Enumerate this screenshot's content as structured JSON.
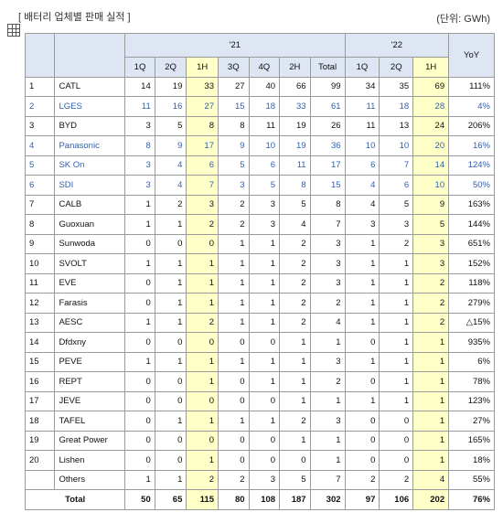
{
  "header": {
    "title": "[ 배터리 업체별 판매 실적 ]",
    "unit": "(단위: GWh)"
  },
  "table": {
    "groups": [
      "'21",
      "'22",
      "YoY"
    ],
    "columns_21": [
      "1Q",
      "2Q",
      "1H",
      "3Q",
      "4Q",
      "2H",
      "Total"
    ],
    "columns_22": [
      "1Q",
      "2Q",
      "1H"
    ],
    "highlight_color": "#ffffc8",
    "rows": [
      {
        "rank": "1",
        "company": "CATL",
        "values": [
          14,
          19,
          33,
          27,
          40,
          66,
          99,
          34,
          35,
          69
        ],
        "yoy": "111%"
      },
      {
        "rank": "2",
        "company": "LGES",
        "values": [
          11,
          16,
          27,
          15,
          18,
          33,
          61,
          11,
          18,
          28
        ],
        "yoy": "4%",
        "color": "#3060b0"
      },
      {
        "rank": "3",
        "company": "BYD",
        "values": [
          3,
          5,
          8,
          8,
          11,
          19,
          26,
          11,
          13,
          24
        ],
        "yoy": "206%"
      },
      {
        "rank": "4",
        "company": "Panasonic",
        "values": [
          8,
          9,
          17,
          9,
          10,
          19,
          36,
          10,
          10,
          20
        ],
        "yoy": "16%",
        "color": "#3060b0"
      },
      {
        "rank": "5",
        "company": "SK On",
        "values": [
          3,
          4,
          6,
          5,
          6,
          11,
          17,
          6,
          7,
          14
        ],
        "yoy": "124%",
        "color": "#3060b0"
      },
      {
        "rank": "6",
        "company": "SDI",
        "values": [
          3,
          4,
          7,
          3,
          5,
          8,
          15,
          4,
          6,
          10
        ],
        "yoy": "50%",
        "color": "#3060b0"
      },
      {
        "rank": "7",
        "company": "CALB",
        "values": [
          1,
          2,
          3,
          2,
          3,
          5,
          8,
          4,
          5,
          9
        ],
        "yoy": "163%"
      },
      {
        "rank": "8",
        "company": "Guoxuan",
        "values": [
          1,
          1,
          2,
          2,
          3,
          4,
          7,
          3,
          3,
          5
        ],
        "yoy": "144%"
      },
      {
        "rank": "9",
        "company": "Sunwoda",
        "values": [
          0,
          0,
          0,
          1,
          1,
          2,
          3,
          1,
          2,
          3
        ],
        "yoy": "651%"
      },
      {
        "rank": "10",
        "company": "SVOLT",
        "values": [
          1,
          1,
          1,
          1,
          1,
          2,
          3,
          1,
          1,
          3
        ],
        "yoy": "152%"
      },
      {
        "rank": "11",
        "company": "EVE",
        "values": [
          0,
          1,
          1,
          1,
          1,
          2,
          3,
          1,
          1,
          2
        ],
        "yoy": "118%"
      },
      {
        "rank": "12",
        "company": "Farasis",
        "values": [
          0,
          1,
          1,
          1,
          1,
          2,
          2,
          1,
          1,
          2
        ],
        "yoy": "279%"
      },
      {
        "rank": "13",
        "company": "AESC",
        "values": [
          1,
          1,
          2,
          1,
          1,
          2,
          4,
          1,
          1,
          2
        ],
        "yoy": "△15%"
      },
      {
        "rank": "14",
        "company": "Dfdxny",
        "values": [
          0,
          0,
          0,
          0,
          0,
          1,
          1,
          0,
          1,
          1
        ],
        "yoy": "935%"
      },
      {
        "rank": "15",
        "company": "PEVE",
        "values": [
          1,
          1,
          1,
          1,
          1,
          1,
          3,
          1,
          1,
          1
        ],
        "yoy": "6%"
      },
      {
        "rank": "16",
        "company": "REPT",
        "values": [
          0,
          0,
          1,
          0,
          1,
          1,
          2,
          0,
          1,
          1
        ],
        "yoy": "78%"
      },
      {
        "rank": "17",
        "company": "JEVE",
        "values": [
          0,
          0,
          0,
          0,
          0,
          1,
          1,
          1,
          1,
          1
        ],
        "yoy": "123%"
      },
      {
        "rank": "18",
        "company": "TAFEL",
        "values": [
          0,
          1,
          1,
          1,
          1,
          2,
          3,
          0,
          0,
          1
        ],
        "yoy": "27%"
      },
      {
        "rank": "19",
        "company": "Great Power",
        "values": [
          0,
          0,
          0,
          0,
          0,
          1,
          1,
          0,
          0,
          1
        ],
        "yoy": "165%"
      },
      {
        "rank": "20",
        "company": "Lishen",
        "values": [
          0,
          0,
          1,
          0,
          0,
          0,
          1,
          0,
          0,
          1
        ],
        "yoy": "18%"
      },
      {
        "company": "Others",
        "values": [
          1,
          1,
          2,
          2,
          3,
          5,
          7,
          2,
          2,
          4
        ],
        "yoy": "55%"
      }
    ],
    "total": {
      "label": "Total",
      "values": [
        50,
        65,
        115,
        80,
        108,
        187,
        302,
        97,
        106,
        202
      ],
      "yoy": "76%"
    }
  }
}
